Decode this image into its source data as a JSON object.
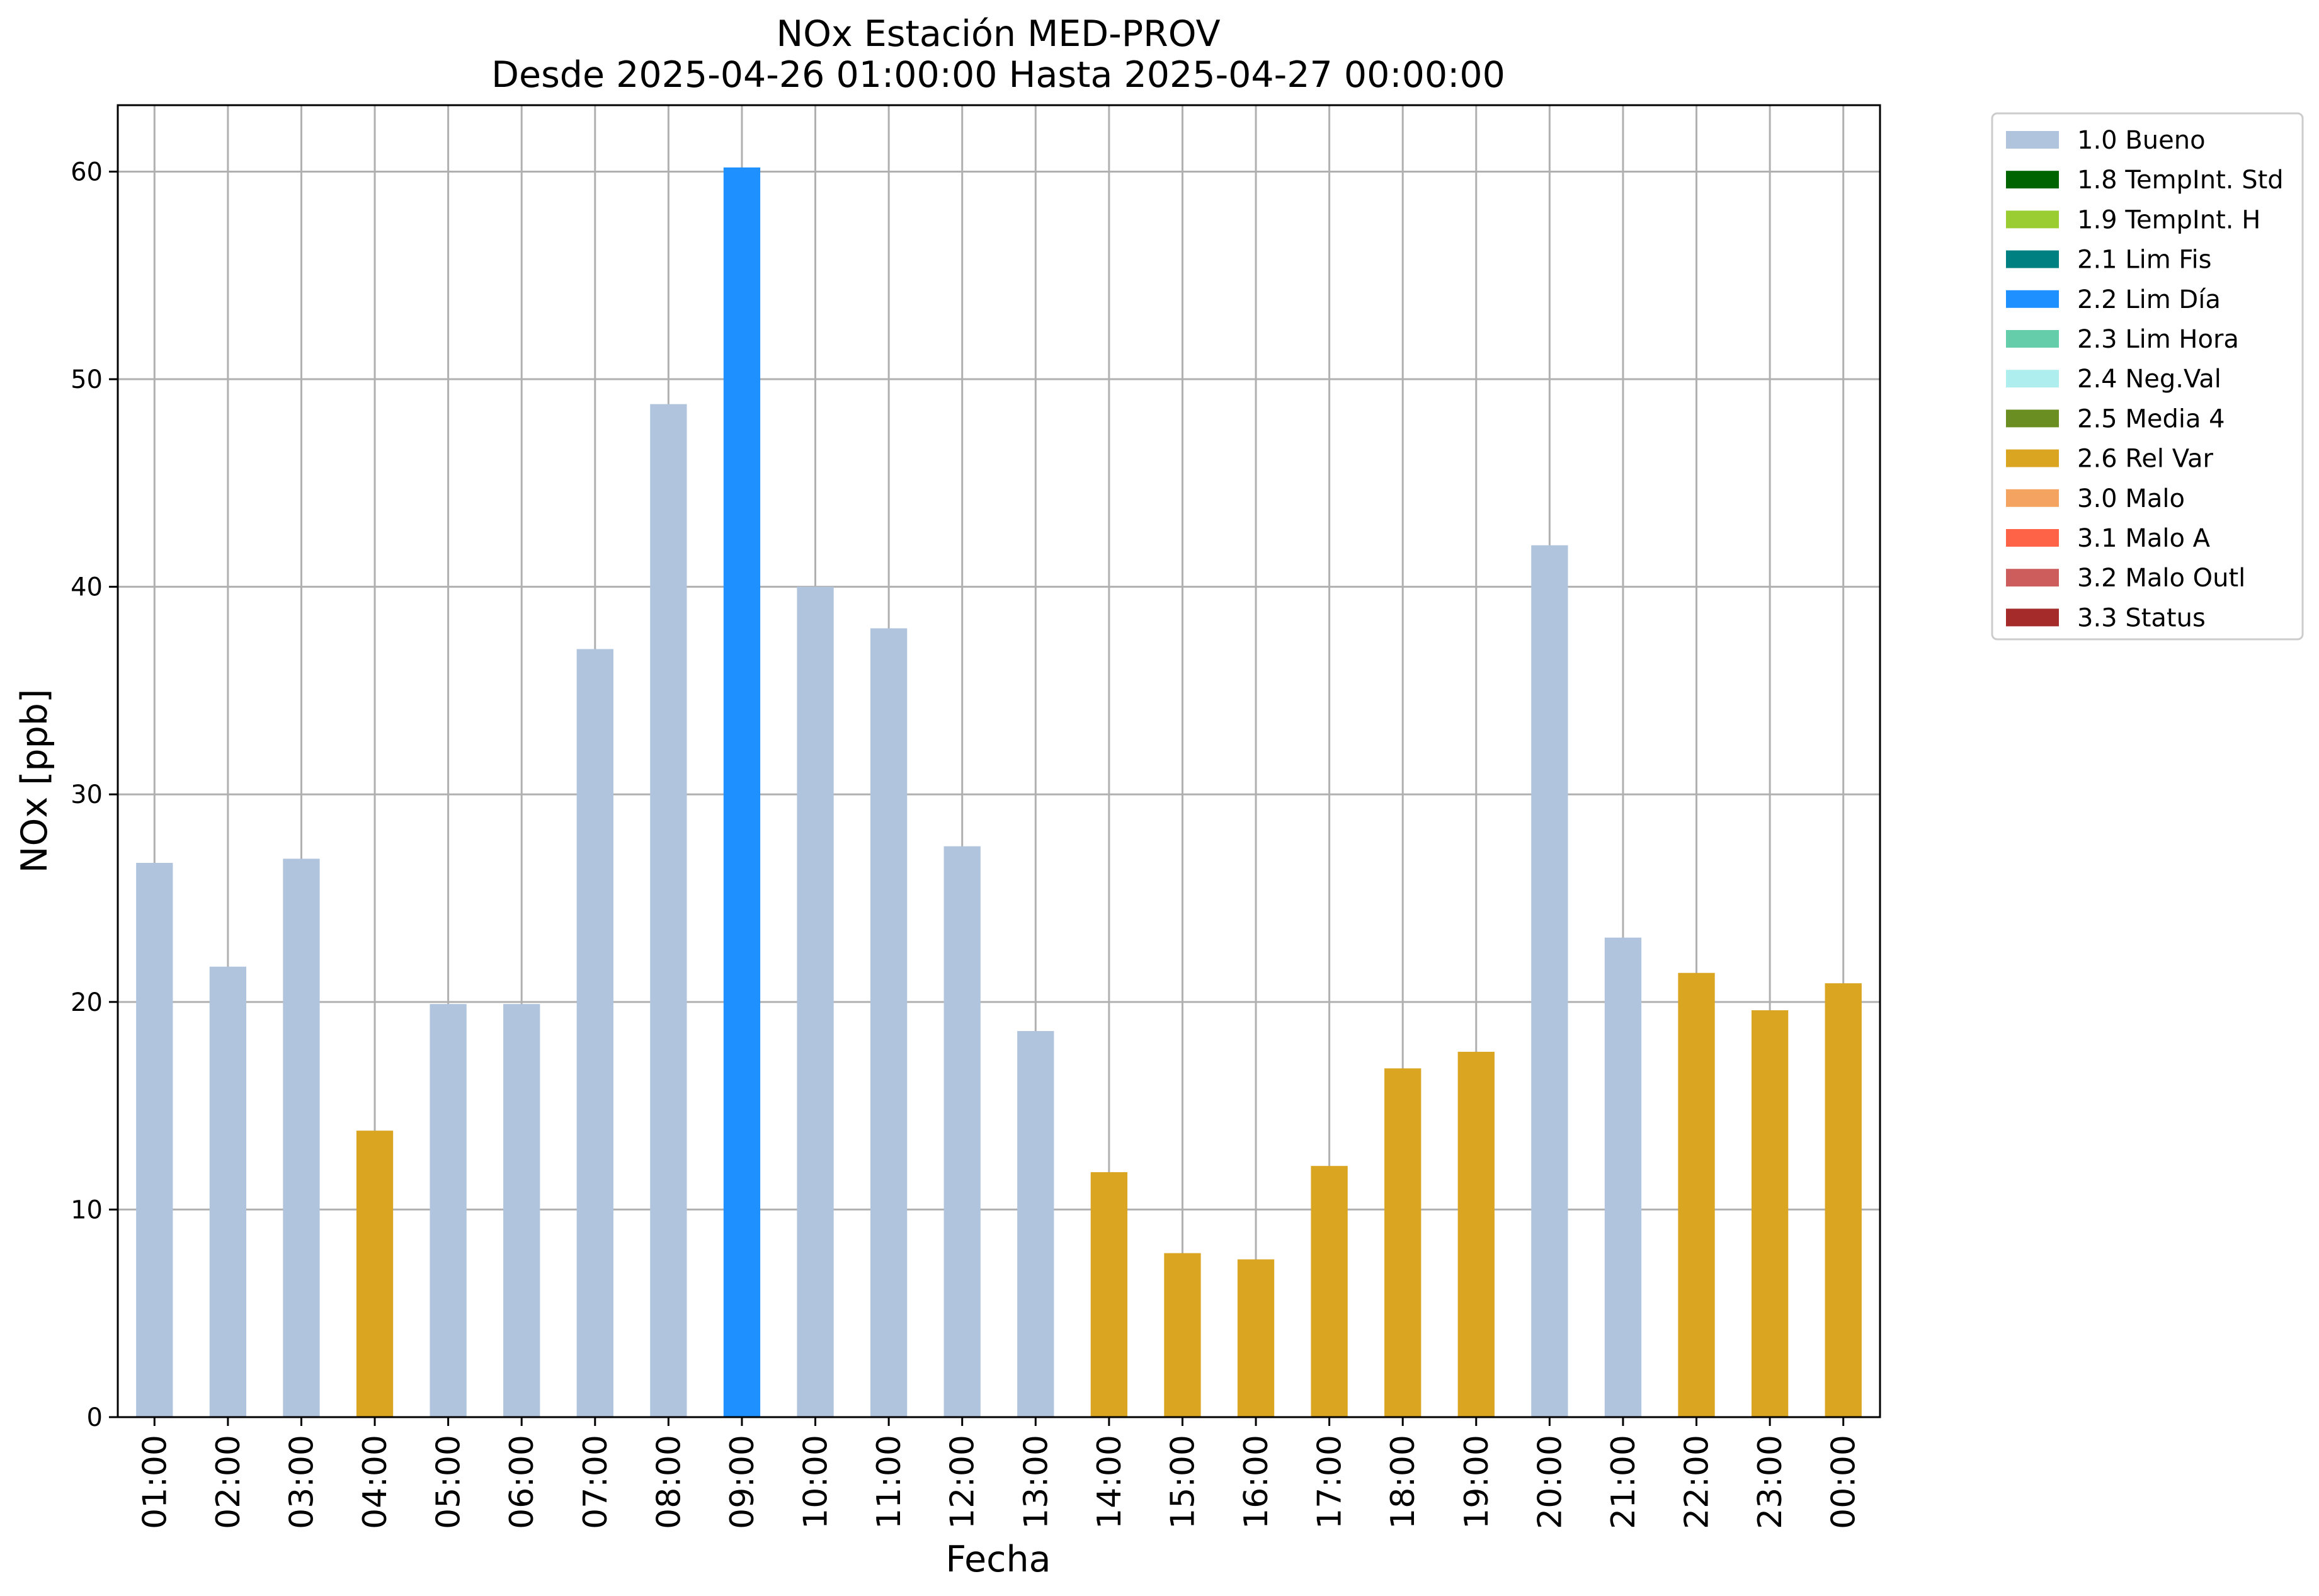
{
  "chart_data": {
    "type": "bar",
    "title_line1": "NOx Estación MED-PROV",
    "title_line2": "Desde 2025-04-26 01:00:00 Hasta 2025-04-27 00:00:00",
    "xlabel": "Fecha",
    "ylabel": "NOx [ppb]",
    "ylim": [
      0,
      63.2
    ],
    "yticks": [
      0,
      10,
      20,
      30,
      40,
      50,
      60
    ],
    "grid": true,
    "legend_position": "outside-right-top",
    "categories": [
      "01:00",
      "02:00",
      "03:00",
      "04:00",
      "05:00",
      "06:00",
      "07:00",
      "08:00",
      "09:00",
      "10:00",
      "11:00",
      "12:00",
      "13:00",
      "14:00",
      "15:00",
      "16:00",
      "17:00",
      "18:00",
      "19:00",
      "20:00",
      "21:00",
      "22:00",
      "23:00",
      "00:00"
    ],
    "values": [
      26.7,
      21.7,
      26.9,
      13.8,
      19.9,
      19.9,
      37.0,
      48.8,
      60.2,
      40.0,
      38.0,
      27.5,
      18.6,
      11.8,
      7.9,
      7.6,
      12.1,
      16.8,
      17.6,
      42.0,
      23.1,
      21.4,
      19.6,
      20.9
    ],
    "flags": [
      "1.0 Bueno",
      "1.0 Bueno",
      "1.0 Bueno",
      "2.6 Rel Var",
      "1.0 Bueno",
      "1.0 Bueno",
      "1.0 Bueno",
      "1.0 Bueno",
      "2.2 Lim Día",
      "1.0 Bueno",
      "1.0 Bueno",
      "1.0 Bueno",
      "1.0 Bueno",
      "2.6 Rel Var",
      "2.6 Rel Var",
      "2.6 Rel Var",
      "2.6 Rel Var",
      "2.6 Rel Var",
      "2.6 Rel Var",
      "1.0 Bueno",
      "1.0 Bueno",
      "2.6 Rel Var",
      "2.6 Rel Var",
      "2.6 Rel Var"
    ],
    "legend": [
      {
        "label": "1.0 Bueno",
        "color": "#b0c4de"
      },
      {
        "label": "1.8 TempInt. Std",
        "color": "#006400"
      },
      {
        "label": "1.9 TempInt. H",
        "color": "#9acd32"
      },
      {
        "label": "2.1 Lim Fis",
        "color": "#008080"
      },
      {
        "label": "2.2 Lim Día",
        "color": "#1e90ff"
      },
      {
        "label": "2.3 Lim Hora",
        "color": "#66cdaa"
      },
      {
        "label": "2.4 Neg.Val",
        "color": "#afeeee"
      },
      {
        "label": "2.5 Media 4",
        "color": "#6b8e23"
      },
      {
        "label": "2.6 Rel Var",
        "color": "#daa520"
      },
      {
        "label": "3.0 Malo",
        "color": "#f4a460"
      },
      {
        "label": "3.1 Malo A",
        "color": "#ff6347"
      },
      {
        "label": "3.2 Malo Outl",
        "color": "#cd5c5c"
      },
      {
        "label": "3.3 Status",
        "color": "#a52a2a"
      }
    ]
  }
}
